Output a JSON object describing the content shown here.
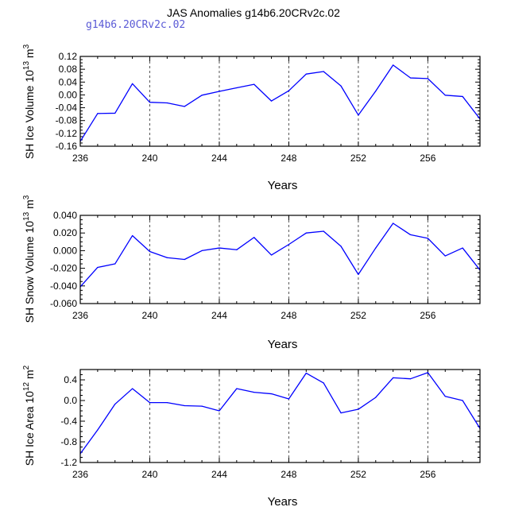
{
  "figure": {
    "title": "JAS Anomalies g14b6.20CRv2c.02",
    "subtitle": "g14b6.20CRv2c.02",
    "line_color": "#0000ff",
    "axis_color": "#000000",
    "gridline_color": "#555555"
  },
  "chart_data": [
    {
      "type": "line",
      "ylabel_main": "SH Ice Volume 10",
      "ylabel_exp": "13",
      "ylabel_unit": " m",
      "ylabel_unit_exp": "3",
      "xlabel": "Years",
      "xlim": [
        236,
        259
      ],
      "ylim": [
        -0.16,
        0.12
      ],
      "xticks": [
        "236",
        "240",
        "244",
        "248",
        "252",
        "256"
      ],
      "yticks": [
        "0.12",
        "0.08",
        "0.04",
        "0.00",
        "-0.04",
        "-0.08",
        "-0.12",
        "-0.16"
      ],
      "gridlines_x": [
        240,
        244,
        248,
        252,
        256
      ],
      "x": [
        236,
        237,
        238,
        239,
        240,
        241,
        242,
        243,
        244,
        245,
        246,
        247,
        248,
        249,
        250,
        251,
        252,
        253,
        254,
        255,
        256,
        257,
        258,
        259
      ],
      "series": [
        {
          "name": "SH Ice Volume",
          "values": [
            -0.145,
            -0.058,
            -0.057,
            0.035,
            -0.023,
            -0.025,
            -0.036,
            -0.001,
            0.011,
            0.022,
            0.033,
            -0.019,
            0.013,
            0.065,
            0.073,
            0.028,
            -0.063,
            0.012,
            0.093,
            0.053,
            0.051,
            -0.001,
            -0.005,
            -0.075
          ]
        }
      ]
    },
    {
      "type": "line",
      "ylabel_main": "SH Snow Volume 10",
      "ylabel_exp": "13",
      "ylabel_unit": " m",
      "ylabel_unit_exp": "3",
      "xlabel": "Years",
      "xlim": [
        236,
        259
      ],
      "ylim": [
        -0.06,
        0.04
      ],
      "xticks": [
        "236",
        "240",
        "244",
        "248",
        "252",
        "256"
      ],
      "yticks": [
        "0.040",
        "0.020",
        "0.000",
        "-0.020",
        "-0.040",
        "-0.060"
      ],
      "gridlines_x": [
        240,
        244,
        248,
        252,
        256
      ],
      "x": [
        236,
        237,
        238,
        239,
        240,
        241,
        242,
        243,
        244,
        245,
        246,
        247,
        248,
        249,
        250,
        251,
        252,
        253,
        254,
        255,
        256,
        257,
        258,
        259
      ],
      "series": [
        {
          "name": "SH Snow Volume",
          "values": [
            -0.041,
            -0.019,
            -0.015,
            0.017,
            -0.001,
            -0.008,
            -0.01,
            0.0,
            0.003,
            0.001,
            0.015,
            -0.005,
            0.007,
            0.02,
            0.022,
            0.005,
            -0.027,
            0.003,
            0.031,
            0.018,
            0.014,
            -0.006,
            0.003,
            -0.022
          ]
        }
      ]
    },
    {
      "type": "line",
      "ylabel_main": "SH Ice Area 10",
      "ylabel_exp": "12",
      "ylabel_unit": " m",
      "ylabel_unit_exp": "2",
      "xlabel": "Years",
      "xlim": [
        236,
        259
      ],
      "ylim": [
        -1.2,
        0.6
      ],
      "xticks": [
        "236",
        "240",
        "244",
        "248",
        "252",
        "256"
      ],
      "yticks": [
        "0.4",
        "0.0",
        "-0.4",
        "-0.8",
        "-1.2"
      ],
      "gridlines_x": [
        240,
        244,
        248,
        252,
        256
      ],
      "x": [
        236,
        237,
        238,
        239,
        240,
        241,
        242,
        243,
        244,
        245,
        246,
        247,
        248,
        249,
        250,
        251,
        252,
        253,
        254,
        255,
        256,
        257,
        258,
        259
      ],
      "series": [
        {
          "name": "SH Ice Area",
          "values": [
            -1.03,
            -0.57,
            -0.07,
            0.23,
            -0.04,
            -0.04,
            -0.1,
            -0.11,
            -0.2,
            0.23,
            0.16,
            0.13,
            0.03,
            0.53,
            0.34,
            -0.24,
            -0.17,
            0.06,
            0.44,
            0.42,
            0.54,
            0.08,
            0.0,
            -0.54
          ]
        }
      ]
    }
  ]
}
